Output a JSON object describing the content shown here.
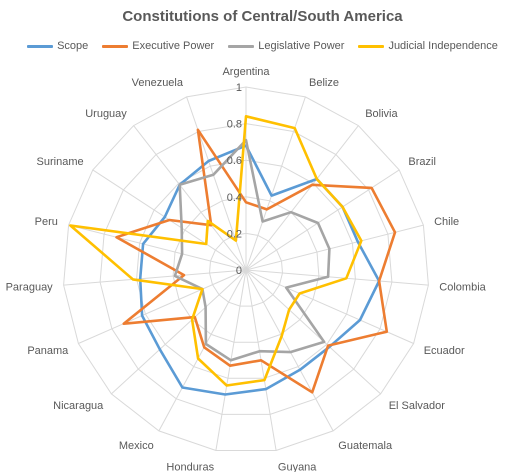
{
  "chart_data": {
    "type": "radar",
    "title": "Constitutions of Central/South America",
    "categories": [
      "Argentina",
      "Belize",
      "Bolivia",
      "Brazil",
      "Chile",
      "Colombia",
      "Ecuador",
      "El Salvador",
      "Guatemala",
      "Guyana",
      "Honduras",
      "Mexico",
      "Nicaragua",
      "Panama",
      "Paraguay",
      "Peru",
      "Suriname",
      "Uruguay",
      "Venezuela"
    ],
    "rlim": [
      0,
      1
    ],
    "ticks": [
      0,
      0.2,
      0.4,
      0.6,
      0.8,
      1
    ],
    "tick_labels": [
      "0",
      "0.2",
      "0.4",
      "0.6",
      "0.8",
      "1"
    ],
    "grid": true,
    "legend_position": "top",
    "series": [
      {
        "name": "Scope",
        "color": "#5B9BD5",
        "values": [
          0.68,
          0.43,
          0.63,
          0.63,
          0.63,
          0.73,
          0.68,
          0.62,
          0.62,
          0.66,
          0.69,
          0.73,
          0.64,
          0.62,
          0.58,
          0.58,
          0.53,
          0.59,
          0.63
        ]
      },
      {
        "name": "Executive Power",
        "color": "#ED7D31",
        "values": [
          0.37,
          0.35,
          0.59,
          0.82,
          0.84,
          0.73,
          0.84,
          0.61,
          0.76,
          0.5,
          0.53,
          0.48,
          0.38,
          0.73,
          0.34,
          0.73,
          0.5,
          0.31,
          0.81
        ]
      },
      {
        "name": "Legislative Power",
        "color": "#A5A5A5",
        "values": [
          0.71,
          0.28,
          0.4,
          0.47,
          0.47,
          0.45,
          0.24,
          0.58,
          0.51,
          0.45,
          0.5,
          0.46,
          0.3,
          0.26,
          0.39,
          0.36,
          0.42,
          0.59,
          0.55
        ]
      },
      {
        "name": "Judicial Independence",
        "color": "#FFC000",
        "values": [
          0.84,
          0.82,
          0.63,
          0.63,
          0.65,
          0.55,
          0.32,
          0.32,
          0.41,
          0.61,
          0.64,
          0.55,
          0.4,
          0.26,
          0.62,
          0.99,
          0.26,
          0.34,
          0.17
        ]
      }
    ]
  }
}
